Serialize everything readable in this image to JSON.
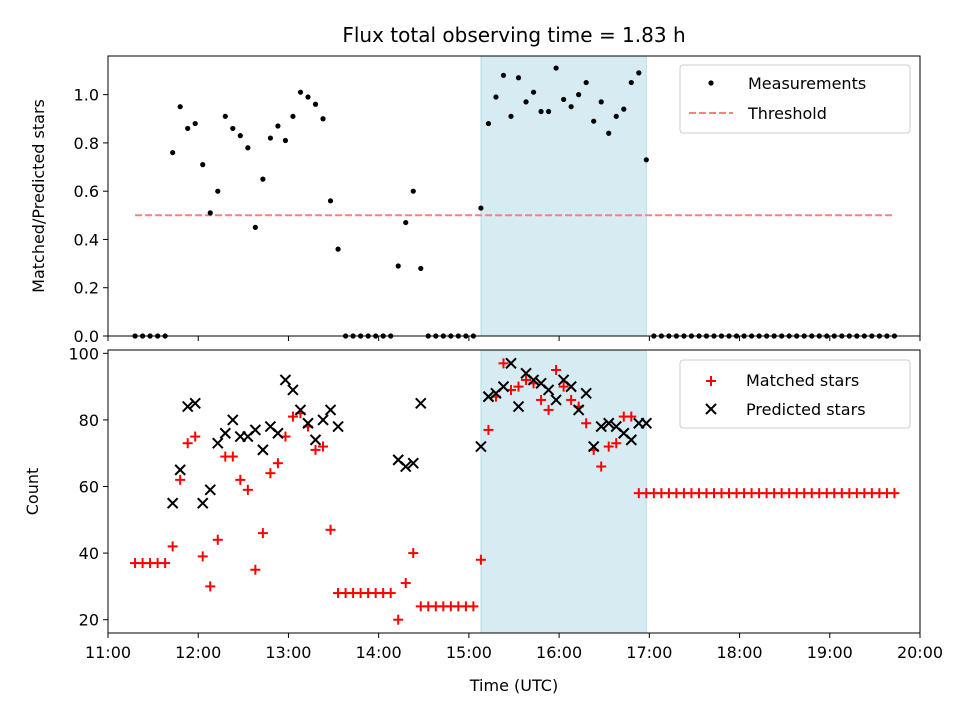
{
  "chart_data": [
    {
      "type": "scatter",
      "title": "Flux total observing time = 1.83 h",
      "xlabel": "",
      "ylabel": "Matched/Predicted stars",
      "xlim": [
        "11:00",
        "20:00"
      ],
      "ylim": [
        0,
        1.16
      ],
      "yticks": [
        "0.0",
        "0.2",
        "0.4",
        "0.6",
        "0.8",
        "1.0"
      ],
      "shaded_span": [
        "15:08",
        "16:58"
      ],
      "legend": "upper right",
      "series": [
        {
          "name": "Measurements",
          "kind": "points",
          "color": "#000000",
          "x": [
            "11:18",
            "11:23",
            "11:28",
            "11:33",
            "11:38",
            "11:43",
            "11:48",
            "11:53",
            "11:58",
            "12:03",
            "12:08",
            "12:13",
            "12:18",
            "12:23",
            "12:28",
            "12:33",
            "12:38",
            "12:43",
            "12:48",
            "12:53",
            "12:58",
            "13:03",
            "13:08",
            "13:13",
            "13:18",
            "13:23",
            "13:28",
            "13:33",
            "13:38",
            "13:43",
            "13:48",
            "13:53",
            "13:58",
            "14:03",
            "14:08",
            "14:13",
            "14:18",
            "14:23",
            "14:28",
            "14:33",
            "14:38",
            "14:43",
            "14:48",
            "14:53",
            "14:58",
            "15:03",
            "15:08",
            "15:13",
            "15:18",
            "15:23",
            "15:28",
            "15:33",
            "15:38",
            "15:43",
            "15:48",
            "15:53",
            "15:58",
            "16:03",
            "16:08",
            "16:13",
            "16:18",
            "16:23",
            "16:28",
            "16:33",
            "16:38",
            "16:43",
            "16:48",
            "16:53",
            "16:58",
            "17:03",
            "17:08",
            "17:13",
            "17:18",
            "17:23",
            "17:28",
            "17:33",
            "17:38",
            "17:43",
            "17:48",
            "17:53",
            "17:58",
            "18:03",
            "18:08",
            "18:13",
            "18:18",
            "18:23",
            "18:28",
            "18:33",
            "18:38",
            "18:43",
            "18:48",
            "18:53",
            "18:58",
            "19:03",
            "19:08",
            "19:13",
            "19:18",
            "19:23",
            "19:28",
            "19:33",
            "19:38",
            "19:43"
          ],
          "y": [
            0,
            0,
            0,
            0,
            0,
            0.76,
            0.95,
            0.86,
            0.88,
            0.71,
            0.51,
            0.6,
            0.91,
            0.86,
            0.83,
            0.78,
            0.45,
            0.65,
            0.82,
            0.87,
            0.81,
            0.91,
            1.01,
            0.99,
            0.96,
            0.9,
            0.56,
            0.36,
            0,
            0,
            0,
            0,
            0,
            0,
            0,
            0.29,
            0.47,
            0.6,
            0.28,
            0,
            0,
            0,
            0,
            0,
            0,
            0,
            0.53,
            0.88,
            0.99,
            1.08,
            0.91,
            1.07,
            0.97,
            1.01,
            0.93,
            0.93,
            1.11,
            0.98,
            0.95,
            1.0,
            1.05,
            0.89,
            0.97,
            0.84,
            0.91,
            0.94,
            1.05,
            1.09,
            0.73,
            0,
            0,
            0,
            0,
            0,
            0,
            0,
            0,
            0,
            0,
            0,
            0,
            0,
            0,
            0,
            0,
            0,
            0,
            0,
            0,
            0,
            0,
            0,
            0,
            0,
            0,
            0,
            0,
            0,
            0,
            0,
            0,
            0
          ]
        },
        {
          "name": "Threshold",
          "kind": "dashed-line",
          "color": "#ff7f7f",
          "x": [
            "11:18",
            "19:43"
          ],
          "y": [
            0.5,
            0.5
          ]
        }
      ]
    },
    {
      "type": "scatter",
      "title": "",
      "xlabel": "Time (UTC)",
      "ylabel": "Count",
      "xlim": [
        "11:00",
        "20:00"
      ],
      "ylim": [
        16,
        101
      ],
      "xticks": [
        "11:00",
        "12:00",
        "13:00",
        "14:00",
        "15:00",
        "16:00",
        "17:00",
        "18:00",
        "19:00",
        "20:00"
      ],
      "yticks": [
        "20",
        "40",
        "60",
        "80",
        "100"
      ],
      "shaded_span": [
        "15:08",
        "16:58"
      ],
      "legend": "upper right",
      "series": [
        {
          "name": "Matched stars",
          "marker": "plus",
          "color": "#ff0000",
          "x": [
            "11:18",
            "11:23",
            "11:28",
            "11:33",
            "11:38",
            "11:43",
            "11:48",
            "11:53",
            "11:58",
            "12:03",
            "12:08",
            "12:13",
            "12:18",
            "12:23",
            "12:28",
            "12:33",
            "12:38",
            "12:43",
            "12:48",
            "12:53",
            "12:58",
            "13:03",
            "13:08",
            "13:13",
            "13:18",
            "13:23",
            "13:28",
            "13:33",
            "13:38",
            "13:43",
            "13:48",
            "13:53",
            "13:58",
            "14:03",
            "14:08",
            "14:13",
            "14:18",
            "14:23",
            "14:28",
            "14:33",
            "14:38",
            "14:43",
            "14:48",
            "14:53",
            "14:58",
            "15:03",
            "15:08",
            "15:13",
            "15:18",
            "15:23",
            "15:28",
            "15:33",
            "15:38",
            "15:43",
            "15:48",
            "15:53",
            "15:58",
            "16:03",
            "16:08",
            "16:13",
            "16:18",
            "16:23",
            "16:28",
            "16:33",
            "16:38",
            "16:43",
            "16:48",
            "16:53",
            "16:58",
            "17:03",
            "17:08",
            "17:13",
            "17:18",
            "17:23",
            "17:28",
            "17:33",
            "17:38",
            "17:43",
            "17:48",
            "17:53",
            "17:58",
            "18:03",
            "18:08",
            "18:13",
            "18:18",
            "18:23",
            "18:28",
            "18:33",
            "18:38",
            "18:43",
            "18:48",
            "18:53",
            "18:58",
            "19:03",
            "19:08",
            "19:13",
            "19:18",
            "19:23",
            "19:28",
            "19:33",
            "19:38",
            "19:43"
          ],
          "y": [
            37,
            37,
            37,
            37,
            37,
            42,
            62,
            73,
            75,
            39,
            30,
            44,
            69,
            69,
            62,
            59,
            35,
            46,
            64,
            67,
            75,
            81,
            82,
            78,
            71,
            72,
            47,
            28,
            28,
            28,
            28,
            28,
            28,
            28,
            28,
            20,
            31,
            40,
            24,
            24,
            24,
            24,
            24,
            24,
            24,
            24,
            38,
            77,
            87,
            97,
            89,
            90,
            92,
            91,
            86,
            83,
            95,
            90,
            86,
            84,
            79,
            71,
            66,
            72,
            73,
            81,
            81,
            58,
            58,
            58,
            58,
            58,
            58,
            58,
            58,
            58,
            58,
            58,
            58,
            58,
            58,
            58,
            58,
            58,
            58,
            58,
            58,
            58,
            58,
            58,
            58,
            58,
            58,
            58,
            58,
            58,
            58,
            58,
            58,
            58,
            58,
            58
          ]
        },
        {
          "name": "Predicted stars",
          "marker": "x",
          "color": "#000000",
          "x": [
            "11:43",
            "11:48",
            "11:53",
            "11:58",
            "12:03",
            "12:08",
            "12:13",
            "12:18",
            "12:23",
            "12:28",
            "12:33",
            "12:38",
            "12:43",
            "12:48",
            "12:53",
            "12:58",
            "13:03",
            "13:08",
            "13:13",
            "13:18",
            "13:23",
            "13:28",
            "13:33",
            "14:13",
            "14:18",
            "14:23",
            "14:28",
            "15:08",
            "15:13",
            "15:18",
            "15:23",
            "15:28",
            "15:33",
            "15:38",
            "15:43",
            "15:48",
            "15:53",
            "15:58",
            "16:03",
            "16:08",
            "16:13",
            "16:18",
            "16:23",
            "16:28",
            "16:33",
            "16:38",
            "16:43",
            "16:48",
            "16:53",
            "16:58"
          ],
          "y": [
            55,
            65,
            84,
            85,
            55,
            59,
            73,
            76,
            80,
            75,
            75,
            77,
            71,
            78,
            76,
            92,
            89,
            83,
            79,
            74,
            80,
            83,
            78,
            68,
            66,
            67,
            85,
            72,
            87,
            88,
            90,
            97,
            84,
            94,
            92,
            91,
            89,
            86,
            92,
            90,
            83,
            88,
            72,
            78,
            79,
            78,
            76,
            74,
            79,
            79
          ]
        }
      ]
    }
  ]
}
